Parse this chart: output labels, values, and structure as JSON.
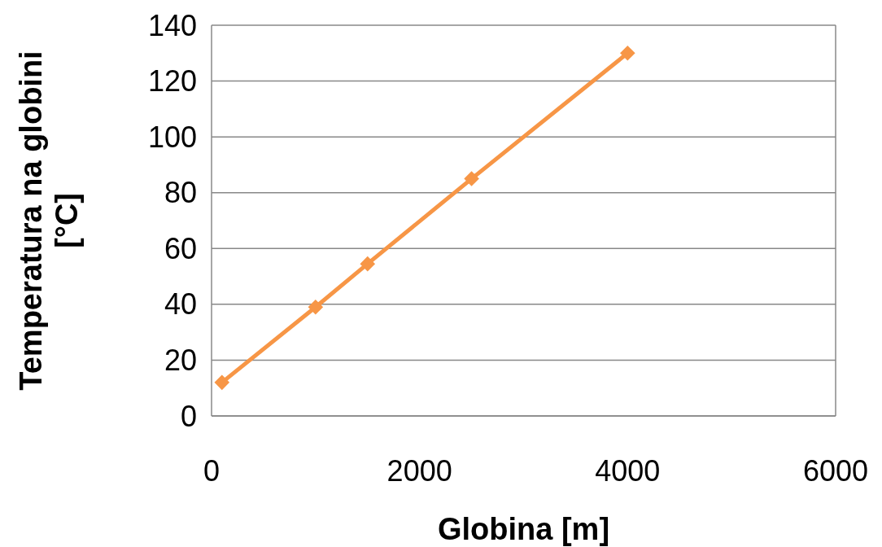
{
  "chart_data": {
    "type": "line",
    "xlabel": "Globina [m]",
    "ylabel": "Temperatura na globini [°C]",
    "x": [
      100,
      1000,
      1500,
      2500,
      4000
    ],
    "series": [
      {
        "color": "#f79646",
        "values": [
          12,
          39,
          54.5,
          85,
          130
        ]
      }
    ],
    "xlim": [
      0,
      6000
    ],
    "xticks": [
      0,
      2000,
      4000,
      6000
    ],
    "ylim": [
      0,
      140
    ],
    "yticks": [
      0,
      20,
      40,
      60,
      80,
      100,
      120,
      140
    ],
    "grid": "y",
    "marker": "diamond",
    "line_style": "solid"
  }
}
